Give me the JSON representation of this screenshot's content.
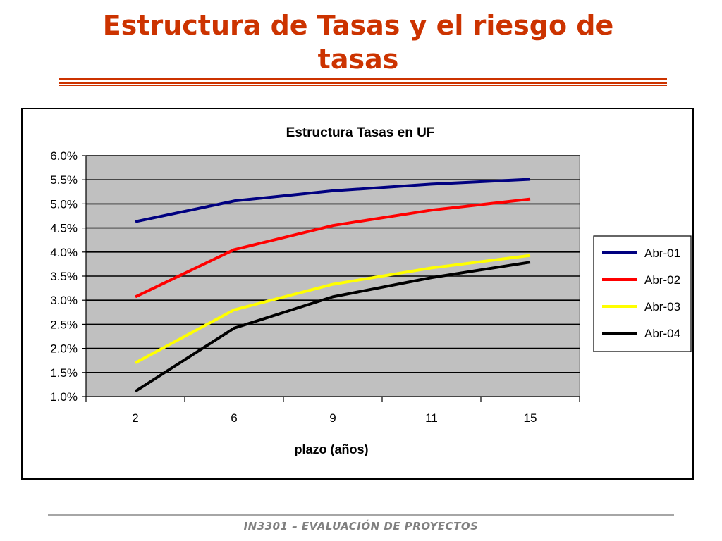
{
  "slide": {
    "title": "Estructura de Tasas y el riesgo de tasas",
    "footer": "IN3301 – EVALUACIÓN DE PROYECTOS",
    "title_color": "#cc3300"
  },
  "chart_data": {
    "type": "line",
    "title": "Estructura Tasas en UF",
    "xlabel": "plazo (años)",
    "ylabel": "",
    "categories": [
      "2",
      "6",
      "9",
      "11",
      "15"
    ],
    "ylim": [
      0.01,
      0.06
    ],
    "yticks": [
      "1.0%",
      "1.5%",
      "2.0%",
      "2.5%",
      "3.0%",
      "3.5%",
      "4.0%",
      "4.5%",
      "5.0%",
      "5.5%",
      "6.0%"
    ],
    "grid": true,
    "legend": "right",
    "plot_background": "#c0c0c0",
    "series": [
      {
        "name": "Abr-01",
        "color": "#000080",
        "values": [
          0.0463,
          0.0506,
          0.0527,
          0.0541,
          0.0551
        ]
      },
      {
        "name": "Abr-02",
        "color": "#ff0000",
        "values": [
          0.0307,
          0.0405,
          0.0455,
          0.0487,
          0.051
        ]
      },
      {
        "name": "Abr-03",
        "color": "#ffff00",
        "values": [
          0.017,
          0.028,
          0.0333,
          0.0367,
          0.0393
        ]
      },
      {
        "name": "Abr-04",
        "color": "#000000",
        "values": [
          0.0111,
          0.0242,
          0.0307,
          0.0347,
          0.0379
        ]
      }
    ]
  }
}
